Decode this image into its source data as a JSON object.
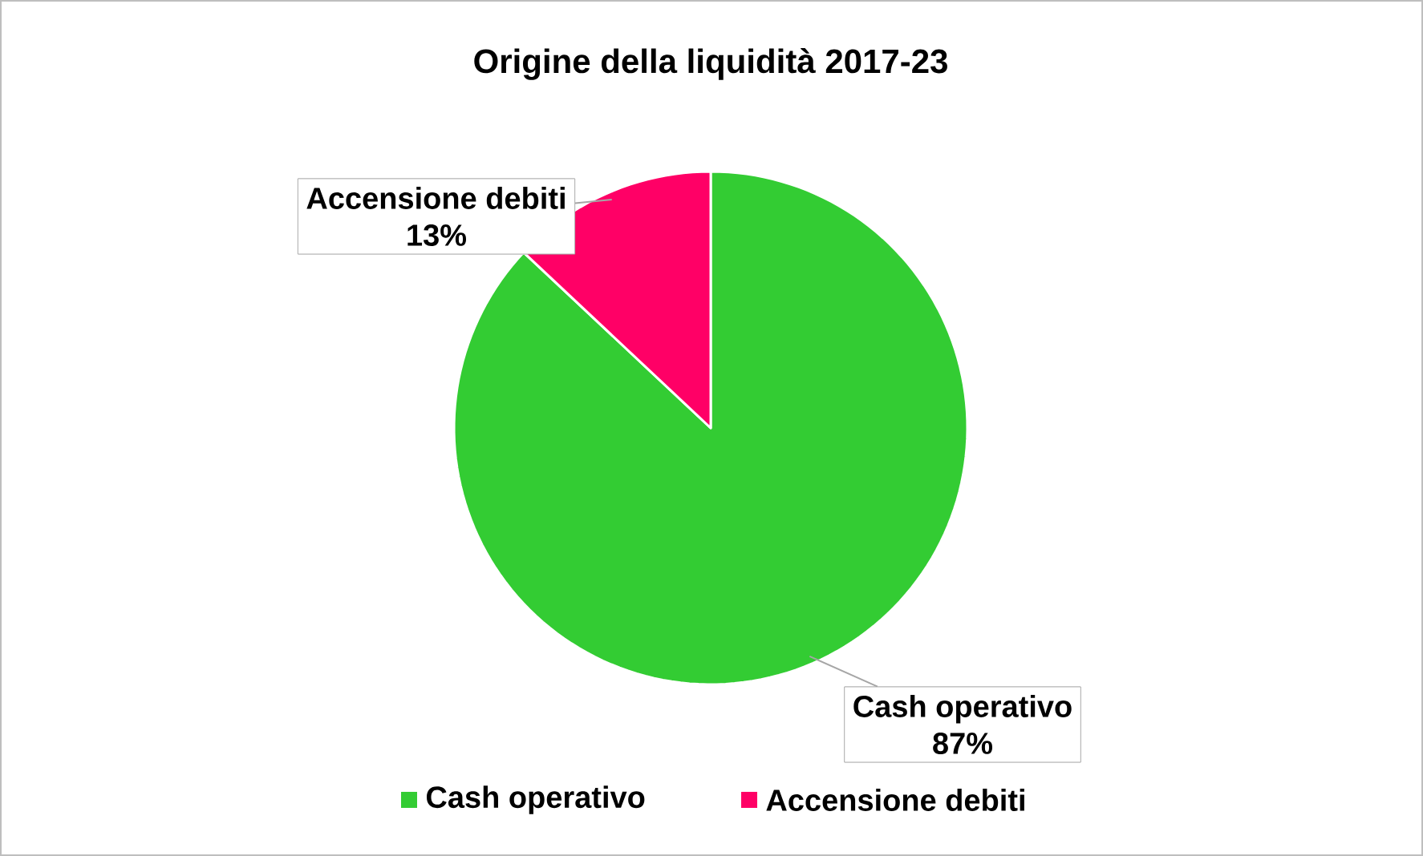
{
  "chart_data": {
    "type": "pie",
    "title": "Origine della liquidità 2017-23",
    "categories": [
      "Cash operativo",
      "Accensione debiti"
    ],
    "values": [
      87,
      13
    ],
    "value_labels": [
      "87%",
      "13%"
    ],
    "colors": [
      "#33cc33",
      "#ff0066"
    ],
    "legend": "bottom"
  }
}
